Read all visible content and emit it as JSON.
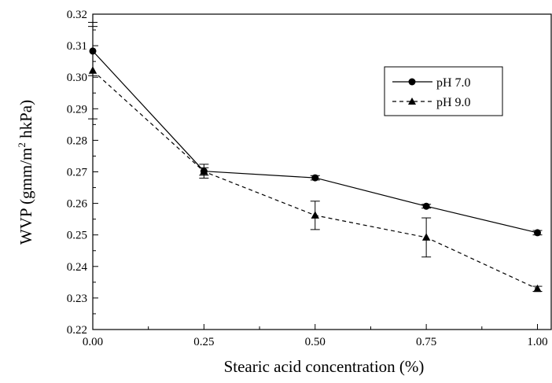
{
  "chart_data": {
    "type": "line",
    "xlabel": "Stearic acid concentration (%)",
    "ylabel_main": "WVP (gmm/m",
    "ylabel_sup": "2",
    "ylabel_tail": " hkPa)",
    "xlim": [
      0,
      1.08
    ],
    "ylim": [
      0.22,
      0.32
    ],
    "x_ticks": [
      0,
      0.25,
      0.5,
      0.75,
      1.0
    ],
    "x_tick_labels": [
      "0.00",
      "0.25",
      "0.50",
      "0.75",
      "1.00"
    ],
    "y_ticks": [
      0.22,
      0.23,
      0.24,
      0.25,
      0.26,
      0.27,
      0.28,
      0.29,
      0.3,
      0.31,
      0.32
    ],
    "y_tick_labels": [
      "0.22",
      "0.23",
      "0.24",
      "0.25",
      "0.26",
      "0.27",
      "0.28",
      "0.29",
      "0.30",
      "0.31",
      "0.32"
    ],
    "grid": false,
    "legend_position": "top-right",
    "series": [
      {
        "name": "pH 7.0",
        "marker": "circle",
        "line": "solid",
        "x": [
          0,
          0.25,
          0.5,
          0.75,
          1.0
        ],
        "y": [
          0.3083,
          0.2702,
          0.2681,
          0.2591,
          0.2507
        ],
        "err": [
          0.0078,
          0.0022,
          0.0007,
          0.0006,
          0.0007
        ]
      },
      {
        "name": "pH 9.0",
        "marker": "triangle",
        "line": "dashed",
        "x": [
          0,
          0.25,
          0.5,
          0.75,
          1.0
        ],
        "y": [
          0.3021,
          0.2701,
          0.2562,
          0.2492,
          0.2329
        ],
        "err": [
          0.0153,
          0.0012,
          0.0045,
          0.0062,
          0.0008
        ]
      }
    ]
  }
}
